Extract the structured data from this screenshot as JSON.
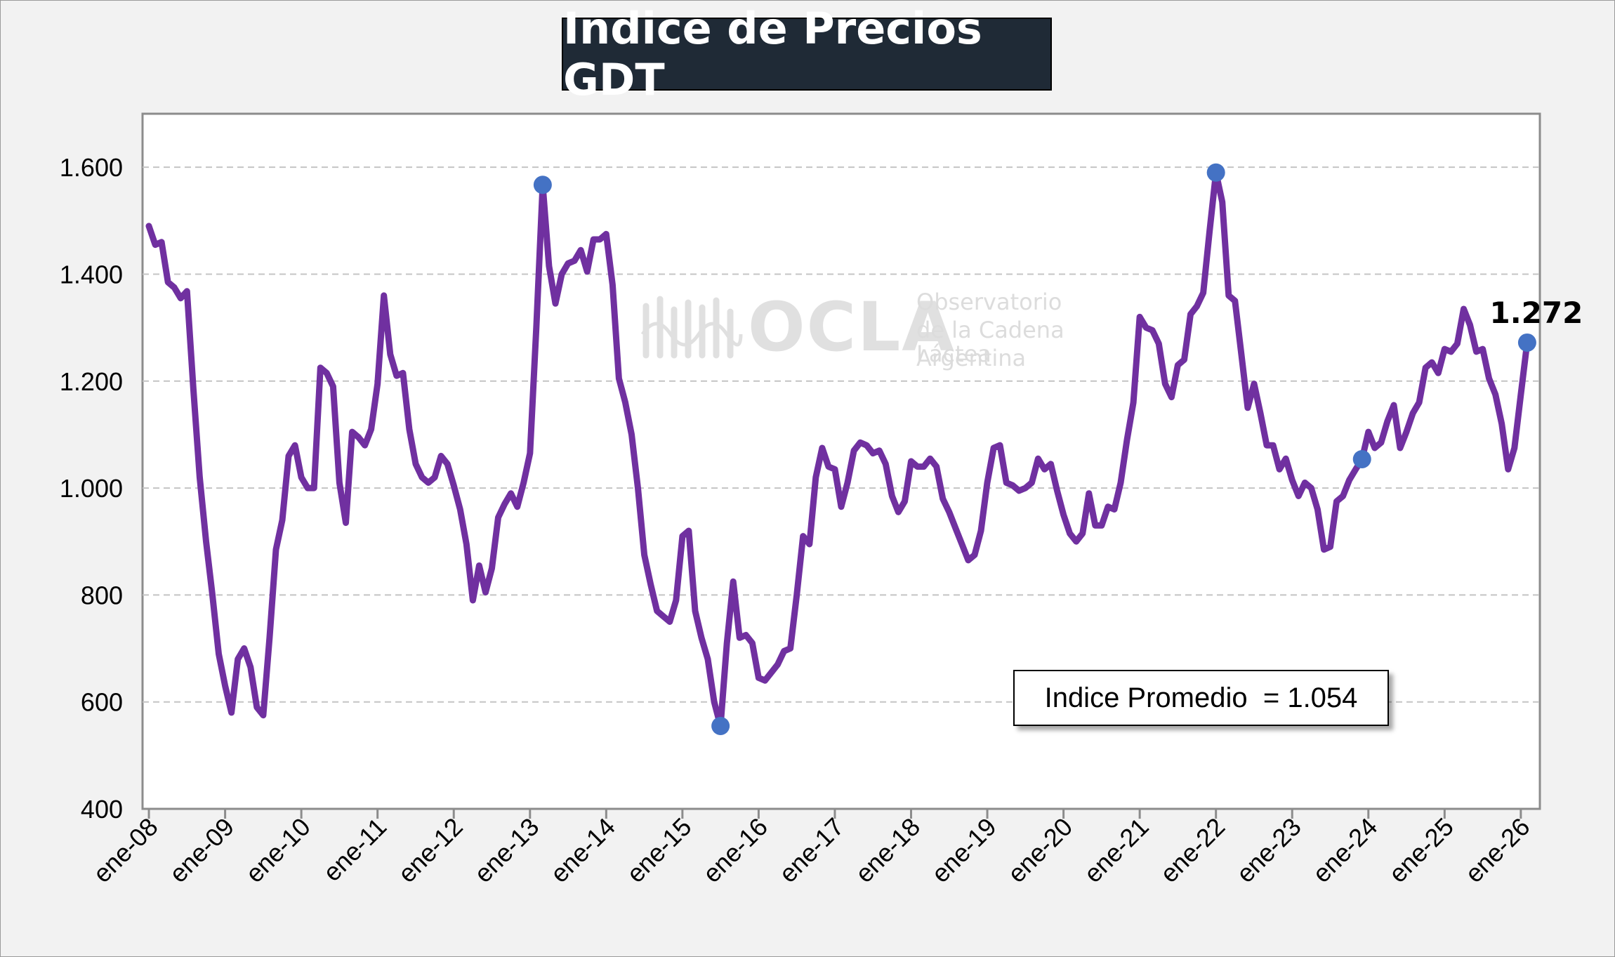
{
  "title": "Indice de Precios GDT",
  "average_label": "Indice Promedio  = 1.054",
  "watermark": {
    "logo_word": "OCLA",
    "line1": "Observatorio",
    "line2": "de la Cadena Láctea",
    "line3": "Argentina"
  },
  "colors": {
    "line": "#7030a0",
    "marker": "#4472c4",
    "title_bg": "#1f2a36",
    "background": "#f2f2f2",
    "plot_bg": "#ffffff"
  },
  "chart_data": {
    "type": "line",
    "x_unit": "month (Jan 2008 = 0)",
    "ylim": [
      400,
      1700
    ],
    "yticks": [
      400,
      600,
      800,
      1000,
      1200,
      1400,
      1600
    ],
    "ytick_labels": [
      "400",
      "600",
      "800",
      "1.000",
      "1.200",
      "1.400",
      "1.600"
    ],
    "xticks": [
      0,
      12,
      24,
      36,
      48,
      60,
      72,
      84,
      96,
      108,
      120,
      132,
      144,
      156,
      168,
      180,
      192,
      204,
      216
    ],
    "xtick_labels": [
      "ene-08",
      "ene-09",
      "ene-10",
      "ene-11",
      "ene-12",
      "ene-13",
      "ene-14",
      "ene-15",
      "ene-16",
      "ene-17",
      "ene-18",
      "ene-19",
      "ene-20",
      "ene-21",
      "ene-22",
      "ene-23",
      "ene-24",
      "ene-25",
      "ene-26"
    ],
    "grid": "horizontal-dashed",
    "series": [
      {
        "points": [
          [
            0,
            1490
          ],
          [
            1,
            1455
          ],
          [
            2,
            1460
          ],
          [
            3,
            1385
          ],
          [
            4,
            1375
          ],
          [
            5,
            1355
          ],
          [
            6,
            1368
          ],
          [
            7,
            1185
          ],
          [
            8,
            1020
          ],
          [
            9,
            900
          ],
          [
            10,
            800
          ],
          [
            11,
            690
          ],
          [
            12,
            630
          ],
          [
            13,
            580
          ],
          [
            14,
            680
          ],
          [
            15,
            700
          ],
          [
            16,
            665
          ],
          [
            17,
            590
          ],
          [
            18,
            575
          ],
          [
            19,
            720
          ],
          [
            20,
            885
          ],
          [
            21,
            940
          ],
          [
            22,
            1060
          ],
          [
            23,
            1080
          ],
          [
            24,
            1020
          ],
          [
            25,
            1000
          ],
          [
            26,
            1000
          ],
          [
            27,
            1225
          ],
          [
            28,
            1215
          ],
          [
            29,
            1190
          ],
          [
            30,
            1010
          ],
          [
            31,
            935
          ],
          [
            32,
            1105
          ],
          [
            33,
            1095
          ],
          [
            34,
            1080
          ],
          [
            35,
            1110
          ],
          [
            36,
            1195
          ],
          [
            37,
            1360
          ],
          [
            38,
            1250
          ],
          [
            39,
            1210
          ],
          [
            40,
            1215
          ],
          [
            41,
            1110
          ],
          [
            42,
            1045
          ],
          [
            43,
            1020
          ],
          [
            44,
            1010
          ],
          [
            45,
            1020
          ],
          [
            46,
            1060
          ],
          [
            47,
            1045
          ],
          [
            48,
            1005
          ],
          [
            49,
            960
          ],
          [
            50,
            895
          ],
          [
            51,
            790
          ],
          [
            52,
            855
          ],
          [
            53,
            805
          ],
          [
            54,
            850
          ],
          [
            55,
            945
          ],
          [
            56,
            970
          ],
          [
            57,
            990
          ],
          [
            58,
            965
          ],
          [
            59,
            1010
          ],
          [
            60,
            1065
          ],
          [
            61,
            1300
          ],
          [
            62,
            1567
          ],
          [
            63,
            1415
          ],
          [
            64,
            1345
          ],
          [
            65,
            1400
          ],
          [
            66,
            1420
          ],
          [
            67,
            1425
          ],
          [
            68,
            1445
          ],
          [
            69,
            1405
          ],
          [
            70,
            1465
          ],
          [
            71,
            1465
          ],
          [
            72,
            1475
          ],
          [
            73,
            1380
          ],
          [
            74,
            1205
          ],
          [
            75,
            1160
          ],
          [
            76,
            1100
          ],
          [
            77,
            1000
          ],
          [
            78,
            875
          ],
          [
            79,
            820
          ],
          [
            80,
            770
          ],
          [
            81,
            760
          ],
          [
            82,
            750
          ],
          [
            83,
            790
          ],
          [
            84,
            910
          ],
          [
            85,
            920
          ],
          [
            86,
            770
          ],
          [
            87,
            720
          ],
          [
            88,
            680
          ],
          [
            89,
            600
          ],
          [
            90,
            555
          ],
          [
            91,
            710
          ],
          [
            92,
            825
          ],
          [
            93,
            720
          ],
          [
            94,
            725
          ],
          [
            95,
            710
          ],
          [
            96,
            645
          ],
          [
            97,
            640
          ],
          [
            98,
            655
          ],
          [
            99,
            670
          ],
          [
            100,
            695
          ],
          [
            101,
            700
          ],
          [
            102,
            800
          ],
          [
            103,
            910
          ],
          [
            104,
            895
          ],
          [
            105,
            1020
          ],
          [
            106,
            1075
          ],
          [
            107,
            1040
          ],
          [
            108,
            1035
          ],
          [
            109,
            965
          ],
          [
            110,
            1010
          ],
          [
            111,
            1070
          ],
          [
            112,
            1085
          ],
          [
            113,
            1080
          ],
          [
            114,
            1065
          ],
          [
            115,
            1070
          ],
          [
            116,
            1045
          ],
          [
            117,
            985
          ],
          [
            118,
            955
          ],
          [
            119,
            975
          ],
          [
            120,
            1050
          ],
          [
            121,
            1040
          ],
          [
            122,
            1040
          ],
          [
            123,
            1055
          ],
          [
            124,
            1040
          ],
          [
            125,
            980
          ],
          [
            126,
            955
          ],
          [
            127,
            925
          ],
          [
            128,
            895
          ],
          [
            129,
            865
          ],
          [
            130,
            875
          ],
          [
            131,
            920
          ],
          [
            132,
            1010
          ],
          [
            133,
            1075
          ],
          [
            134,
            1080
          ],
          [
            135,
            1010
          ],
          [
            136,
            1005
          ],
          [
            137,
            995
          ],
          [
            138,
            1000
          ],
          [
            139,
            1010
          ],
          [
            140,
            1055
          ],
          [
            141,
            1035
          ],
          [
            142,
            1045
          ],
          [
            143,
            995
          ],
          [
            144,
            950
          ],
          [
            145,
            915
          ],
          [
            146,
            900
          ],
          [
            147,
            915
          ],
          [
            148,
            990
          ],
          [
            149,
            930
          ],
          [
            150,
            930
          ],
          [
            151,
            965
          ],
          [
            152,
            960
          ],
          [
            153,
            1010
          ],
          [
            154,
            1090
          ],
          [
            155,
            1160
          ],
          [
            156,
            1320
          ],
          [
            157,
            1300
          ],
          [
            158,
            1295
          ],
          [
            159,
            1270
          ],
          [
            160,
            1195
          ],
          [
            161,
            1170
          ],
          [
            162,
            1230
          ],
          [
            163,
            1240
          ],
          [
            164,
            1325
          ],
          [
            165,
            1340
          ],
          [
            166,
            1365
          ],
          [
            167,
            1480
          ],
          [
            168,
            1590
          ],
          [
            169,
            1535
          ],
          [
            170,
            1360
          ],
          [
            171,
            1350
          ],
          [
            172,
            1250
          ],
          [
            173,
            1150
          ],
          [
            174,
            1195
          ],
          [
            175,
            1140
          ],
          [
            176,
            1080
          ],
          [
            177,
            1080
          ],
          [
            178,
            1035
          ],
          [
            179,
            1055
          ],
          [
            180,
            1015
          ],
          [
            181,
            985
          ],
          [
            182,
            1010
          ],
          [
            183,
            1000
          ],
          [
            184,
            960
          ],
          [
            185,
            885
          ],
          [
            186,
            890
          ],
          [
            187,
            975
          ],
          [
            188,
            985
          ],
          [
            189,
            1015
          ],
          [
            190,
            1035
          ],
          [
            191,
            1054
          ],
          [
            192,
            1105
          ],
          [
            193,
            1075
          ],
          [
            194,
            1085
          ],
          [
            195,
            1125
          ],
          [
            196,
            1155
          ],
          [
            197,
            1075
          ],
          [
            198,
            1105
          ],
          [
            199,
            1140
          ],
          [
            200,
            1160
          ],
          [
            201,
            1225
          ],
          [
            202,
            1235
          ],
          [
            203,
            1215
          ],
          [
            204,
            1260
          ],
          [
            205,
            1255
          ],
          [
            206,
            1270
          ],
          [
            207,
            1335
          ],
          [
            208,
            1305
          ],
          [
            209,
            1255
          ],
          [
            210,
            1260
          ],
          [
            211,
            1205
          ],
          [
            212,
            1175
          ],
          [
            213,
            1120
          ],
          [
            214,
            1035
          ],
          [
            215,
            1075
          ],
          [
            216,
            1175
          ],
          [
            217,
            1272
          ]
        ]
      }
    ],
    "markers": [
      {
        "x": 62,
        "y": 1567
      },
      {
        "x": 90,
        "y": 555
      },
      {
        "x": 168,
        "y": 1590
      },
      {
        "x": 191,
        "y": 1054
      },
      {
        "x": 217,
        "y": 1272
      }
    ],
    "annotations": [
      {
        "text": "1.272",
        "x": 217,
        "y": 1272
      }
    ]
  }
}
